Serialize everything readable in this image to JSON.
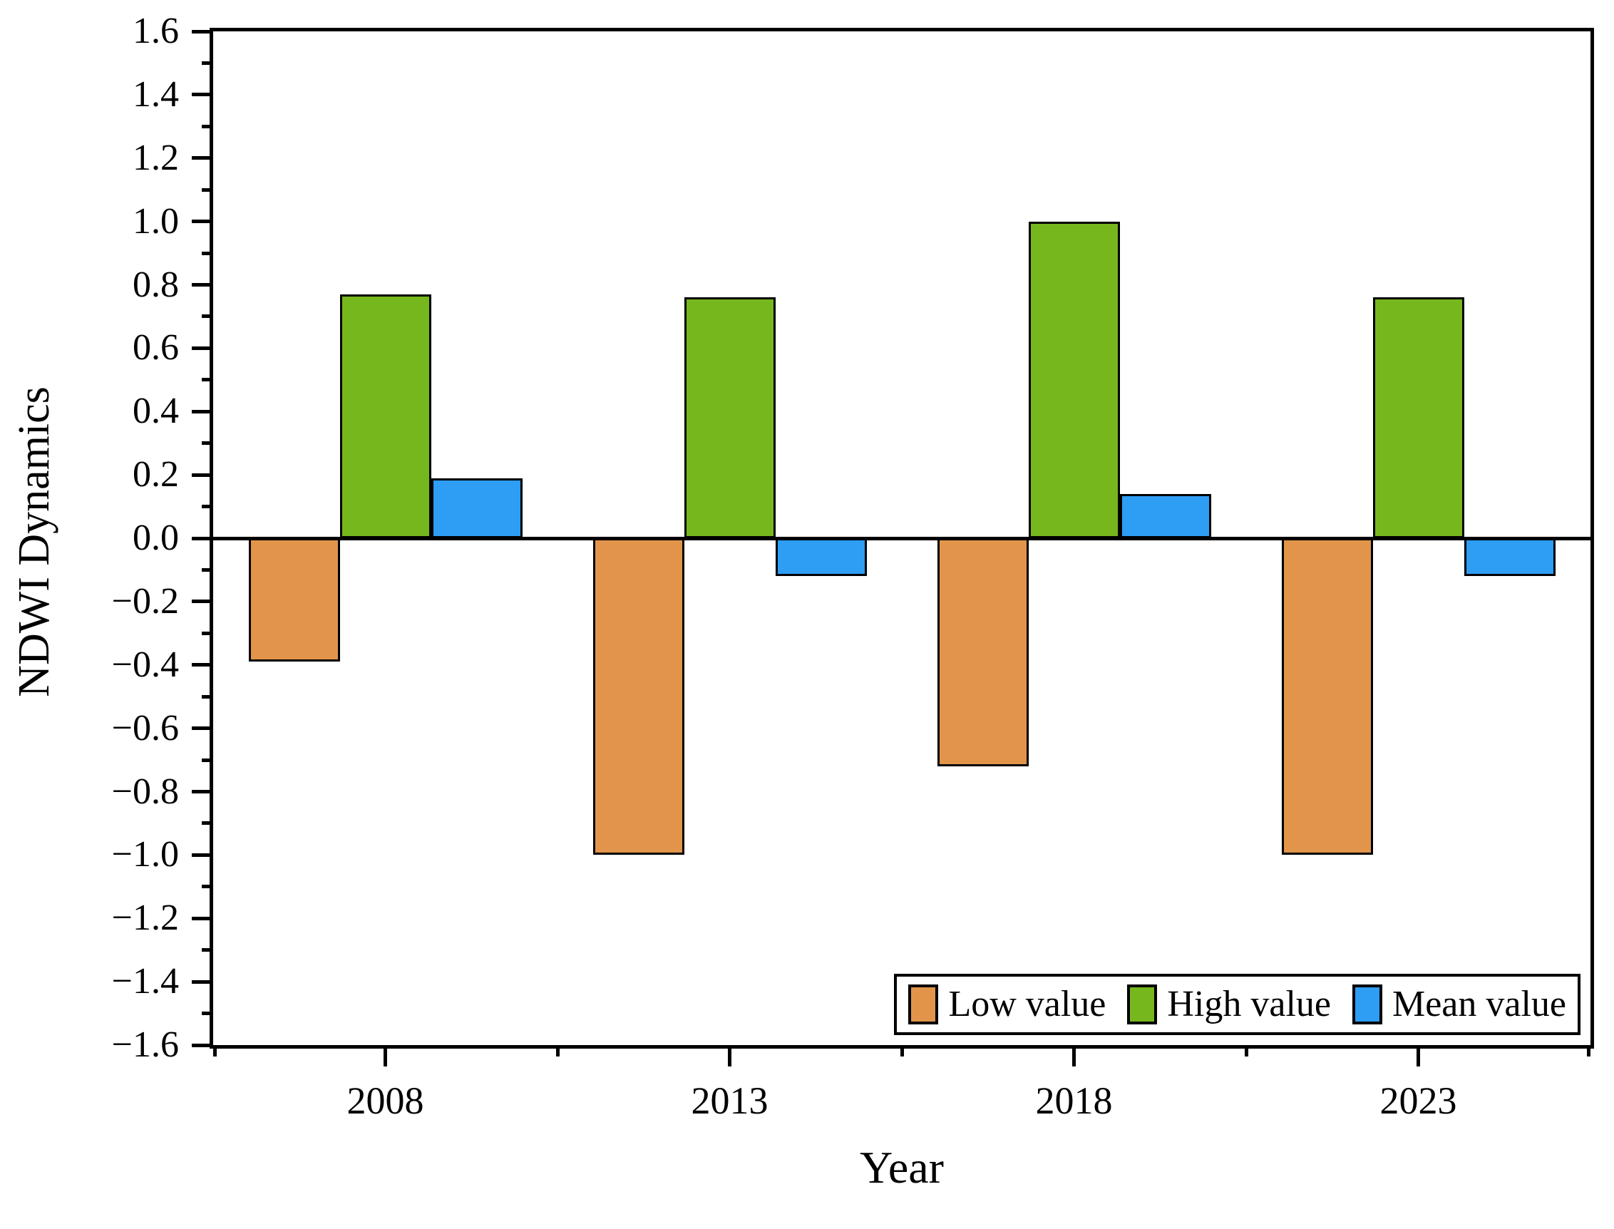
{
  "chart_data": {
    "type": "bar",
    "title": "",
    "xlabel": "Year",
    "ylabel": "NDWI Dynamics",
    "categories": [
      "2008",
      "2013",
      "2018",
      "2023"
    ],
    "series": [
      {
        "name": "Low value",
        "color": "#E2954A",
        "values": [
          -0.39,
          -1.0,
          -0.72,
          -1.0
        ]
      },
      {
        "name": "High value",
        "color": "#76B71E",
        "values": [
          0.77,
          0.76,
          1.0,
          0.76
        ]
      },
      {
        "name": "Mean value",
        "color": "#2E9DF4",
        "values": [
          0.19,
          -0.12,
          0.14,
          -0.12
        ]
      }
    ],
    "ylim": [
      -1.6,
      1.6
    ],
    "ytick_step": 0.2,
    "yminor_step": 0.1,
    "grid": false,
    "legend_position": "bottom-right",
    "axis_color": "#000000",
    "bar_edge_color": "#000000",
    "background_color": "#FFFFFF"
  }
}
